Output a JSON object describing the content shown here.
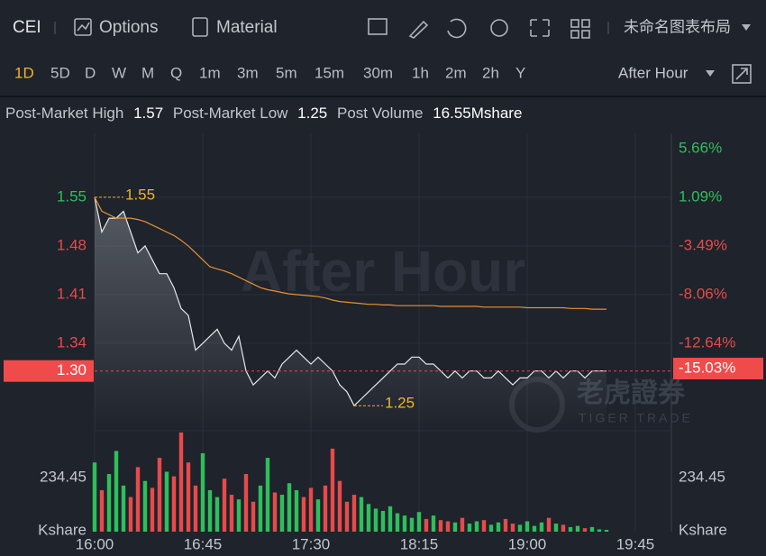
{
  "toolbar": {
    "symbol": "CEI",
    "options": "Options",
    "material": "Material",
    "layout": "未命名图表布局"
  },
  "periods": [
    "1D",
    "5D",
    "D",
    "W",
    "M",
    "Q",
    "1m",
    "3m",
    "5m",
    "15m",
    "30m",
    "1h",
    "2m",
    "2h",
    "Y"
  ],
  "session": "After Hour",
  "info": {
    "high_label": "Post-Market High",
    "high": 1.57,
    "low_label": "Post-Market Low",
    "low": 1.25,
    "volume_label": "Post Volume",
    "volume": "16.55Mshare"
  },
  "chart_data": {
    "type": "line",
    "watermark": "After Hour",
    "logo": "老虎證券",
    "logo_sub": "TIGER TRADE",
    "x": [
      "16:00",
      "16:03",
      "16:06",
      "16:09",
      "16:12",
      "16:15",
      "16:18",
      "16:21",
      "16:24",
      "16:27",
      "16:30",
      "16:33",
      "16:36",
      "16:39",
      "16:42",
      "16:45",
      "16:48",
      "16:51",
      "16:54",
      "16:57",
      "17:00",
      "17:03",
      "17:06",
      "17:09",
      "17:12",
      "17:15",
      "17:18",
      "17:21",
      "17:24",
      "17:27",
      "17:30",
      "17:33",
      "17:36",
      "17:39",
      "17:42",
      "17:45",
      "17:48",
      "17:51",
      "17:54",
      "17:57",
      "18:00",
      "18:03",
      "18:06",
      "18:09",
      "18:12",
      "18:15",
      "18:18",
      "18:21",
      "18:24",
      "18:27",
      "18:30",
      "18:33",
      "18:36",
      "18:39",
      "18:42",
      "18:45",
      "18:48",
      "18:51",
      "18:54",
      "18:57",
      "19:00",
      "19:03",
      "19:06",
      "19:09",
      "19:12",
      "19:15",
      "19:18",
      "19:21",
      "19:24",
      "19:27",
      "19:30",
      "19:33"
    ],
    "xlim": [
      "16:00",
      "20:00"
    ],
    "xticks": [
      "16:00",
      "16:45",
      "17:30",
      "18:15",
      "19:00",
      "19:45"
    ],
    "price": {
      "color": "#e6e8eb",
      "values": [
        1.55,
        1.5,
        1.52,
        1.52,
        1.53,
        1.5,
        1.47,
        1.48,
        1.46,
        1.44,
        1.44,
        1.42,
        1.39,
        1.38,
        1.33,
        1.34,
        1.35,
        1.36,
        1.34,
        1.33,
        1.35,
        1.3,
        1.28,
        1.29,
        1.3,
        1.29,
        1.31,
        1.32,
        1.33,
        1.32,
        1.31,
        1.32,
        1.31,
        1.3,
        1.28,
        1.27,
        1.25,
        1.26,
        1.27,
        1.28,
        1.29,
        1.3,
        1.31,
        1.31,
        1.32,
        1.32,
        1.31,
        1.31,
        1.3,
        1.29,
        1.3,
        1.29,
        1.3,
        1.3,
        1.29,
        1.29,
        1.3,
        1.29,
        1.28,
        1.29,
        1.29,
        1.3,
        1.3,
        1.29,
        1.3,
        1.29,
        1.3,
        1.3,
        1.29,
        1.3,
        1.3,
        1.3
      ]
    },
    "average": {
      "color": "#e8912f",
      "values": [
        1.55,
        1.53,
        1.525,
        1.52,
        1.52,
        1.52,
        1.518,
        1.515,
        1.51,
        1.505,
        1.5,
        1.495,
        1.488,
        1.48,
        1.47,
        1.46,
        1.45,
        1.447,
        1.444,
        1.44,
        1.435,
        1.43,
        1.425,
        1.42,
        1.417,
        1.415,
        1.413,
        1.411,
        1.41,
        1.409,
        1.408,
        1.407,
        1.405,
        1.402,
        1.4,
        1.399,
        1.398,
        1.397,
        1.396,
        1.396,
        1.395,
        1.395,
        1.394,
        1.394,
        1.394,
        1.394,
        1.394,
        1.394,
        1.393,
        1.393,
        1.393,
        1.393,
        1.393,
        1.393,
        1.392,
        1.392,
        1.392,
        1.392,
        1.392,
        1.392,
        1.391,
        1.391,
        1.391,
        1.391,
        1.391,
        1.391,
        1.39,
        1.39,
        1.39,
        1.389,
        1.389,
        1.389
      ]
    },
    "ylim": [
      1.214,
      1.642
    ],
    "yticks": [
      1.34,
      1.41,
      1.48,
      1.55
    ],
    "y2lim": [
      -20.88,
      7.1
    ],
    "y2ticks": [
      {
        "value": 5.66,
        "label": "5.66%"
      },
      {
        "value": 1.09,
        "label": "1.09%"
      },
      {
        "value": -3.49,
        "label": "-3.49%"
      },
      {
        "value": -8.06,
        "label": "-8.06%"
      },
      {
        "value": -12.64,
        "label": "-12.64%"
      }
    ],
    "last_price": {
      "value": 1.3,
      "label": "1.30"
    },
    "last_change": {
      "value": -15.03,
      "label": "-15.03%"
    },
    "up_color": "#2fbf5a",
    "down_color": "#e84a4a",
    "volume": {
      "unit": "Kshare",
      "ylim": [
        0,
        437.6
      ],
      "yticks": [
        234.45
      ],
      "values": [
        300,
        180,
        250,
        350,
        200,
        150,
        280,
        220,
        190,
        320,
        260,
        240,
        430,
        300,
        200,
        340,
        180,
        150,
        230,
        160,
        140,
        250,
        130,
        200,
        320,
        170,
        160,
        210,
        180,
        150,
        190,
        140,
        200,
        360,
        220,
        130,
        160,
        150,
        120,
        100,
        90,
        110,
        80,
        70,
        60,
        85,
        55,
        70,
        50,
        45,
        40,
        60,
        35,
        45,
        50,
        30,
        40,
        55,
        35,
        30,
        45,
        25,
        40,
        60,
        35,
        30,
        20,
        25,
        15,
        20,
        10,
        8
      ]
    },
    "grid": true
  }
}
